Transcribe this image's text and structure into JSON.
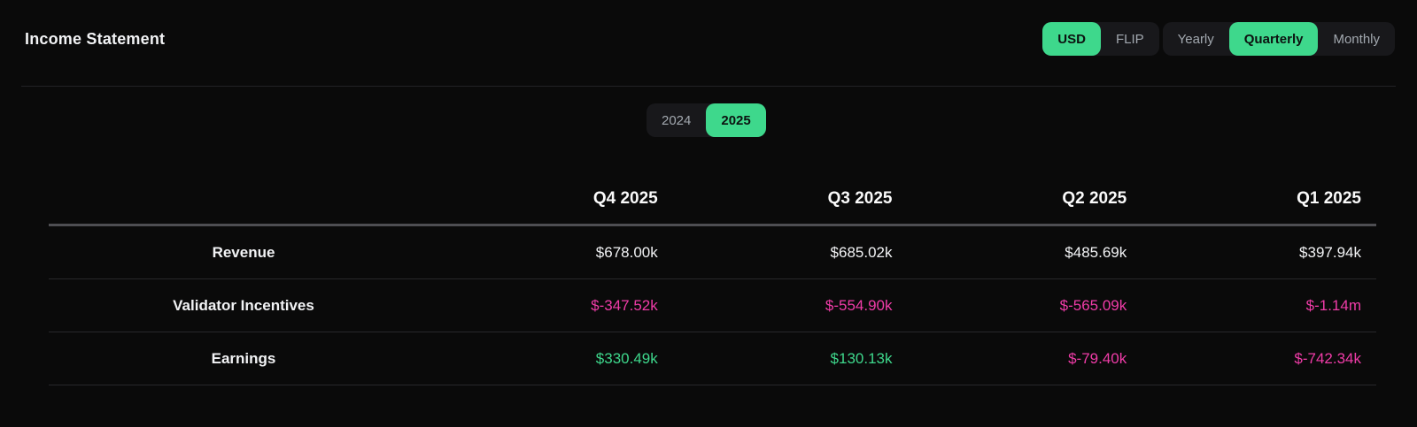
{
  "page": {
    "title": "Income Statement"
  },
  "colors": {
    "background": "#0a0a0a",
    "accent_green": "#3ed88c",
    "negative_pink": "#f03ca8",
    "neutral_text": "#f2f3f5",
    "inactive_toggle_text": "#a2a8af",
    "toggle_group_bg": "#18181b"
  },
  "toggles": {
    "currency": {
      "options": [
        "USD",
        "FLIP"
      ],
      "active": "USD"
    },
    "period": {
      "options": [
        "Yearly",
        "Quarterly",
        "Monthly"
      ],
      "active": "Quarterly"
    },
    "year": {
      "options": [
        "2024",
        "2025"
      ],
      "active": "2025"
    }
  },
  "table": {
    "columns": [
      "Q4 2025",
      "Q3 2025",
      "Q2 2025",
      "Q1 2025"
    ],
    "rows": [
      {
        "label": "Revenue",
        "values": [
          "$678.00k",
          "$685.02k",
          "$485.69k",
          "$397.94k"
        ],
        "value_colors": [
          "neutral",
          "neutral",
          "neutral",
          "neutral"
        ]
      },
      {
        "label": "Validator Incentives",
        "values": [
          "$-347.52k",
          "$-554.90k",
          "$-565.09k",
          "$-1.14m"
        ],
        "value_colors": [
          "negative",
          "negative",
          "negative",
          "negative"
        ]
      },
      {
        "label": "Earnings",
        "values": [
          "$330.49k",
          "$130.13k",
          "$-79.40k",
          "$-742.34k"
        ],
        "value_colors": [
          "positive",
          "positive",
          "negative",
          "negative"
        ]
      }
    ]
  }
}
